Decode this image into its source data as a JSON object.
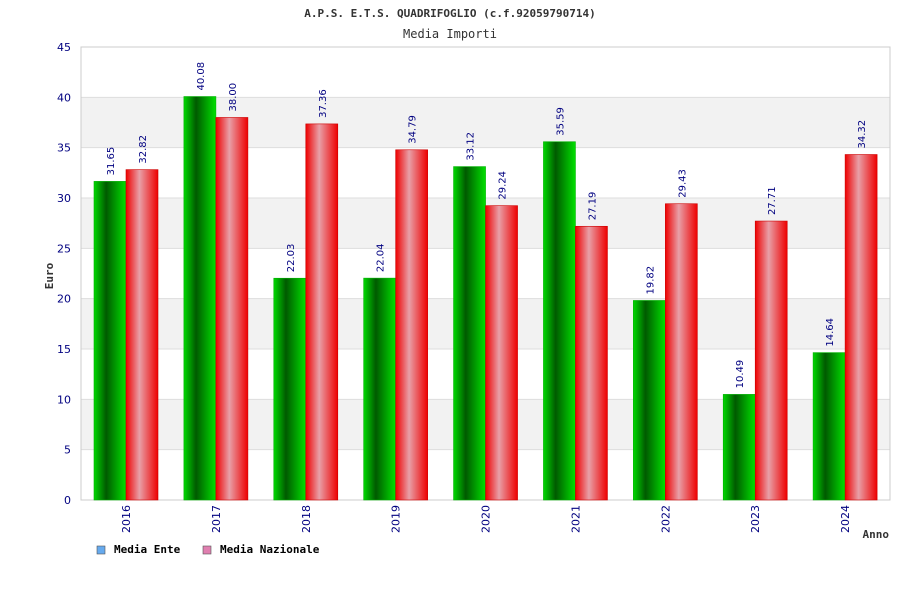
{
  "chart_data": {
    "type": "bar",
    "title": "A.P.S. E.T.S. QUADRIFOGLIO (c.f.92059790714)",
    "subtitle": "Media Importi",
    "xlabel": "Anno",
    "ylabel": "Euro",
    "categories": [
      "2016",
      "2017",
      "2018",
      "2019",
      "2020",
      "2021",
      "2022",
      "2023",
      "2024"
    ],
    "series": [
      {
        "name": "Media Ente",
        "color": "#00cc00",
        "legend_color": "#66aaee",
        "values": [
          31.65,
          40.08,
          22.03,
          22.04,
          33.12,
          35.59,
          19.82,
          10.49,
          14.64
        ],
        "labels": [
          "31.65",
          "40.08",
          "22.03",
          "22.04",
          "33.12",
          "35.59",
          "19.82",
          "10.49",
          "14.64"
        ]
      },
      {
        "name": "Media Nazionale",
        "color": "#ee1122",
        "legend_color": "#e07fb0",
        "values": [
          32.82,
          38.0,
          37.36,
          34.79,
          29.24,
          27.19,
          29.43,
          27.71,
          34.32
        ],
        "labels": [
          "32.82",
          "38.00",
          "37.36",
          "34.79",
          "29.24",
          "27.19",
          "29.43",
          "27.71",
          "34.32"
        ]
      }
    ],
    "ylim": [
      0,
      45
    ],
    "yticks": [
      "0",
      "5",
      "10",
      "15",
      "20",
      "25",
      "30",
      "35",
      "40",
      "45"
    ],
    "grid": true,
    "legend": "bottom-left"
  }
}
